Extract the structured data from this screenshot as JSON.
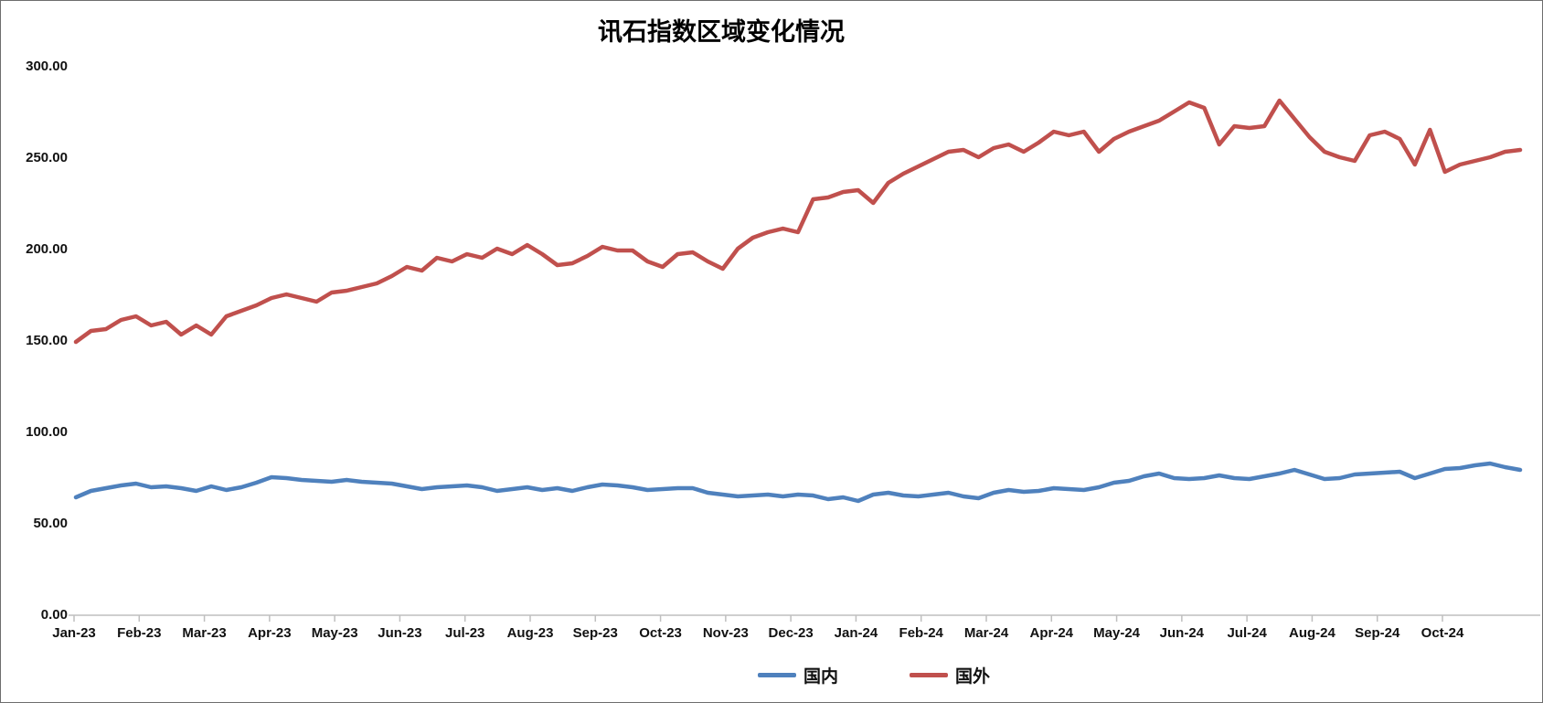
{
  "chart_data": {
    "type": "line",
    "title": "讯石指数区域变化情况",
    "xlabel": "",
    "ylabel": "",
    "x_unit": "week",
    "x_tick_labels": [
      "Jan-23",
      "Feb-23",
      "Mar-23",
      "Apr-23",
      "May-23",
      "Jun-23",
      "Jul-23",
      "Aug-23",
      "Sep-23",
      "Oct-23",
      "Nov-23",
      "Dec-23",
      "Jan-24",
      "Feb-24",
      "Mar-24",
      "Apr-24",
      "May-24",
      "Jun-24",
      "Jul-24",
      "Aug-24",
      "Sep-24",
      "Oct-24"
    ],
    "y_tick_labels": [
      "0.00",
      "50.00",
      "100.00",
      "150.00",
      "200.00",
      "250.00",
      "300.00"
    ],
    "ylim": [
      0,
      300
    ],
    "y_tick_step": 50,
    "grid": "off",
    "legend_position": "bottom-center",
    "background": "#ffffff",
    "series": [
      {
        "name": "国内",
        "color": "#4F81BD",
        "values": [
          64,
          67.5,
          69,
          70.5,
          71.5,
          69.5,
          70,
          69,
          67.5,
          70,
          68,
          69.5,
          72,
          75,
          74.5,
          73.5,
          73,
          72.5,
          73.5,
          72.5,
          72,
          71.5,
          70,
          68.5,
          69.5,
          70,
          70.5,
          69.5,
          67.5,
          68.5,
          69.5,
          68,
          69,
          67.5,
          69.5,
          71,
          70.5,
          69.5,
          68,
          68.5,
          69,
          69,
          66.5,
          65.5,
          64.5,
          65,
          65.5,
          64.5,
          65.5,
          65,
          63,
          64,
          62,
          65.5,
          66.5,
          65,
          64.5,
          65.5,
          66.5,
          64.5,
          63.5,
          66.5,
          68,
          67,
          67.5,
          69,
          68.5,
          68,
          69.5,
          72,
          73,
          75.5,
          77,
          74.5,
          74,
          74.5,
          76,
          74.5,
          74,
          75.5,
          77,
          79,
          76.5,
          74,
          74.5,
          76.5,
          77,
          77.5,
          78,
          74.5,
          77,
          79.5,
          80,
          81.5,
          82.5,
          80.5,
          79
        ]
      },
      {
        "name": "国外",
        "color": "#C0504D",
        "values": [
          149,
          155,
          156,
          161,
          163,
          158,
          160,
          153,
          158,
          153,
          163,
          166,
          169,
          173,
          175,
          173,
          171,
          176,
          177,
          179,
          181,
          185,
          190,
          188,
          195,
          193,
          197,
          195,
          200,
          197,
          202,
          197,
          191,
          192,
          196,
          201,
          199,
          199,
          193,
          190,
          197,
          198,
          193,
          189,
          200,
          206,
          209,
          211,
          209,
          227,
          228,
          231,
          232,
          225,
          236,
          241,
          245,
          249,
          253,
          254,
          250,
          255,
          257,
          253,
          258,
          264,
          262,
          264,
          253,
          260,
          264,
          267,
          270,
          275,
          280,
          277,
          257,
          267,
          266,
          267,
          281,
          271,
          261,
          253,
          250,
          248,
          262,
          264,
          260,
          246,
          265,
          242,
          246,
          248,
          250,
          253,
          254
        ]
      }
    ]
  },
  "legend": {
    "item_domestic": "国内",
    "item_foreign": "国外"
  },
  "colors": {
    "domestic_line": "#4F81BD",
    "foreign_line": "#C0504D",
    "axis_line": "#bfbfbf",
    "label_text": "#111111"
  }
}
